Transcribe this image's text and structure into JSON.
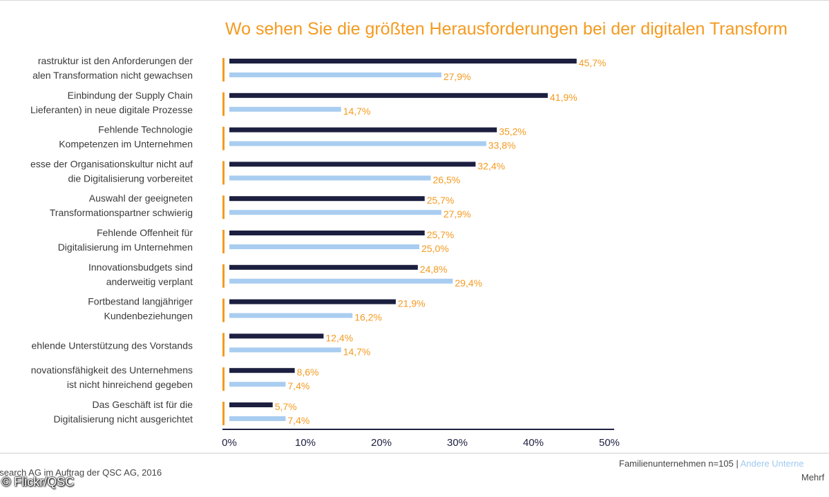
{
  "chart_data": {
    "type": "bar",
    "orientation": "horizontal",
    "title": "Wo sehen Sie die größten Herausforderungen bei der digitalen Transform",
    "categories": [
      [
        "rastruktur ist den Anforderungen der",
        "alen Transformation nicht gewachsen"
      ],
      [
        "Einbindung der Supply Chain",
        "Lieferanten) in neue digitale Prozesse"
      ],
      [
        "Fehlende Technologie",
        "Kompetenzen im Unternehmen"
      ],
      [
        "esse der Organisationskultur nicht auf",
        "die Digitalisierung vorbereitet"
      ],
      [
        "Auswahl der geeigneten",
        "Transformationspartner schwierig"
      ],
      [
        "Fehlende Offenheit für",
        "Digitalisierung im Unternehmen"
      ],
      [
        "Innovationsbudgets sind",
        "anderweitig verplant"
      ],
      [
        "Fortbestand langjähriger",
        "Kundenbeziehungen"
      ],
      [
        "ehlende Unterstützung des Vorstands"
      ],
      [
        "novationsfähigkeit des Unternehmens",
        "ist nicht hinreichend gegeben"
      ],
      [
        "Das Geschäft ist für die",
        "Digitalisierung nicht ausgerichtet"
      ]
    ],
    "series": [
      {
        "name": "Familienunternehmen n=105",
        "color": "#1c1f3f",
        "values": [
          45.7,
          41.9,
          35.2,
          32.4,
          25.7,
          25.7,
          24.8,
          21.9,
          12.4,
          8.6,
          5.7
        ],
        "labels": [
          "45,7%",
          "41,9%",
          "35,2%",
          "32,4%",
          "25,7%",
          "25,7%",
          "24,8%",
          "21,9%",
          "12,4%",
          "8,6%",
          "5,7%"
        ]
      },
      {
        "name": "Andere Unterne",
        "color": "#a9cdf0",
        "values": [
          27.9,
          14.7,
          33.8,
          26.5,
          27.9,
          25.0,
          29.4,
          16.2,
          14.7,
          7.4,
          7.4
        ],
        "labels": [
          "27,9%",
          "14,7%",
          "33,8%",
          "26,5%",
          "27,9%",
          "25,0%",
          "29,4%",
          "16,2%",
          "14,7%",
          "7,4%",
          "7,4%"
        ]
      }
    ],
    "x_ticks": [
      "0%",
      "10%",
      "20%",
      "30%",
      "40%",
      "50%"
    ],
    "xlim": [
      0,
      50
    ],
    "grid": false,
    "value_label_color": "#f49a1f",
    "marker_color": "#f49a1f"
  },
  "footer": {
    "source": "esearch AG im Auftrag der QSC AG, 2016",
    "legend_family": "Familienunternehmen n=105 |",
    "legend_other": "Andere Unterne",
    "note": "Mehrf"
  },
  "credit": "© Flickr/QSC"
}
